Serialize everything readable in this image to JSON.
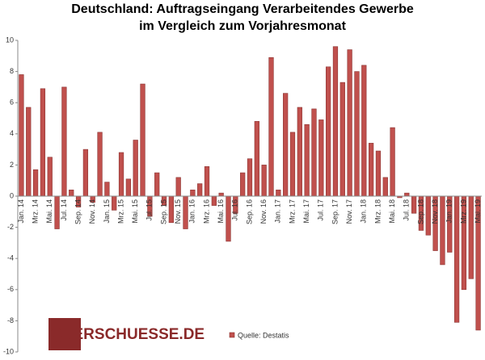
{
  "chart_data": {
    "type": "bar",
    "title": [
      "Deutschland: Auftragseingang Verarbeitendes Gewerbe",
      "im Vergleich zum Vorjahresmonat"
    ],
    "categories": [
      "Jan. 14",
      null,
      "Mrz. 14",
      null,
      "Mai. 14",
      null,
      "Jul. 14",
      null,
      "Sep. 14",
      null,
      "Nov. 14",
      null,
      "Jan. 15",
      null,
      "Mrz. 15",
      null,
      "Mai. 15",
      null,
      "Jul. 15",
      null,
      "Sep. 15",
      null,
      "Nov. 15",
      null,
      "Jan. 16",
      null,
      "Mrz. 16",
      null,
      "Mai. 16",
      null,
      "Jul. 16",
      null,
      "Sep. 16",
      null,
      "Nov. 16",
      null,
      "Jan. 17",
      null,
      "Mrz. 17",
      null,
      "Mai. 17",
      null,
      "Jul. 17",
      null,
      "Sep. 17",
      null,
      "Nov. 17",
      null,
      "Jan. 18",
      null,
      "Mrz. 18",
      null,
      "Mai. 18",
      null,
      "Jul. 18",
      null,
      "Sep. 18",
      null,
      "Nov. 18",
      null,
      "Jan. 19",
      null,
      "Mrz. 19",
      null,
      "Mai. 19"
    ],
    "series": [
      {
        "name": "Quelle: Destatis",
        "color": "#c0504d",
        "values": [
          7.8,
          5.7,
          1.7,
          6.9,
          2.5,
          -2.1,
          7.0,
          0.4,
          -0.7,
          3.0,
          -0.4,
          4.1,
          0.9,
          -0.9,
          2.8,
          1.1,
          3.6,
          7.2,
          -1.3,
          1.5,
          -0.6,
          -1.7,
          1.2,
          -2.1,
          0.4,
          0.8,
          1.9,
          -0.6,
          0.2,
          -2.9,
          -1.1,
          1.5,
          2.4,
          4.8,
          2.0,
          8.9,
          0.4,
          6.6,
          4.1,
          5.7,
          4.6,
          5.6,
          4.9,
          8.3,
          9.6,
          7.3,
          9.4,
          8.0,
          8.4,
          3.4,
          2.9,
          1.2,
          4.4,
          -0.1,
          0.2,
          -1.1,
          -2.2,
          -2.5,
          -3.5,
          -4.4,
          -3.6,
          -8.1,
          -6.0,
          -5.3,
          -8.6
        ]
      }
    ],
    "ylim": [
      -10,
      10
    ],
    "yticks": [
      10,
      8,
      6,
      4,
      2,
      0,
      -2,
      -4,
      -6,
      -8,
      -10
    ],
    "watermark": "QUERSCHUESSE.DE"
  }
}
